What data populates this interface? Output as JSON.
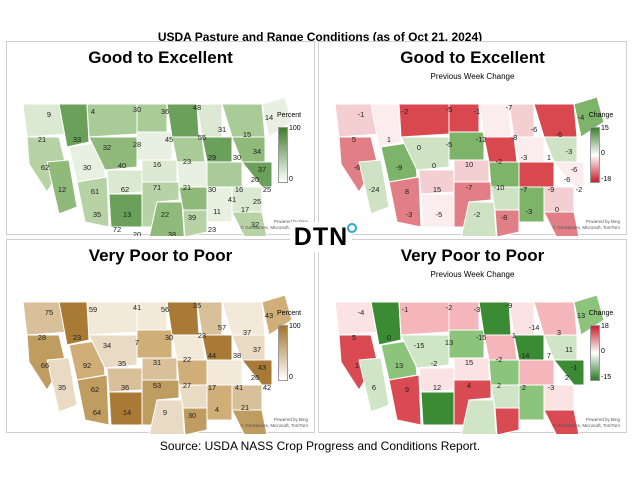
{
  "title": "USDA Pasture and Range Conditions (as of Oct 21, 2024)",
  "source": "Source:  USDA NASS Crop Progress and Conditions Report.",
  "logo_text": "DTN",
  "credit": {
    "line1": "Powered by Bing",
    "line2": "© GeoNames, Microsoft, TomTom"
  },
  "panels": [
    {
      "title": "Good to Excellent",
      "subtitle": "",
      "legend": {
        "title": "Percent",
        "max": "100",
        "min": "0",
        "colors": [
          "#3f7d2c",
          "#ffffff"
        ]
      },
      "labels": [
        "9",
        "4",
        "30",
        "36",
        "48",
        "21",
        "33",
        "32",
        "28",
        "45",
        "55",
        "31",
        "15",
        "14",
        "62",
        "30",
        "40",
        "16",
        "23",
        "29",
        "30",
        "34",
        "37",
        "12",
        "61",
        "62",
        "71",
        "21",
        "30",
        "16",
        "20",
        "25",
        "35",
        "13",
        "22",
        "39",
        "11",
        "17",
        "25",
        "20",
        "38",
        "23",
        "32",
        "72",
        "41"
      ]
    },
    {
      "title": "Good to Excellent",
      "subtitle": "Previous Week Change",
      "legend": {
        "title": "Change",
        "max": "15",
        "zero": "0",
        "min": "-18",
        "colors": [
          "#3f7d2c",
          "#ffffff",
          "#c81e2c"
        ]
      },
      "labels": [
        "-1",
        "-2",
        "-5",
        "-1",
        "-7",
        "5",
        "1",
        "0",
        "-5",
        "-12",
        "-8",
        "-6",
        "-6",
        "-4",
        "-6",
        "-9",
        "0",
        "10",
        "-2",
        "-3",
        "1",
        "-3",
        "-6",
        "-24",
        "8",
        "15",
        "-7",
        "-10",
        "-7",
        "-9",
        "-6",
        "-2",
        "-3",
        "-5",
        "-2",
        "-8",
        "-3",
        "0"
      ]
    },
    {
      "title": "Very Poor to Poor",
      "subtitle": "",
      "legend": {
        "title": "Percent",
        "max": "100",
        "min": "0",
        "colors": [
          "#a3752b",
          "#ffffff"
        ]
      },
      "labels": [
        "75",
        "59",
        "41",
        "56",
        "35",
        "28",
        "23",
        "34",
        "7",
        "30",
        "23",
        "57",
        "37",
        "43",
        "66",
        "92",
        "35",
        "31",
        "22",
        "44",
        "38",
        "37",
        "43",
        "35",
        "62",
        "36",
        "53",
        "27",
        "17",
        "41",
        "26",
        "42",
        "64",
        "14",
        "9",
        "30",
        "4",
        "21"
      ]
    },
    {
      "title": "Very Poor to Poor",
      "subtitle": "Previous Week Change",
      "legend": {
        "title": "Change",
        "max": "18",
        "zero": "0",
        "min": "-15",
        "colors": [
          "#c81e2c",
          "#ffffff",
          "#2f7a2a"
        ]
      },
      "labels": [
        "-4",
        "-1",
        "-2",
        "-3",
        "-9",
        "5",
        "0",
        "-15",
        "13",
        "-15",
        "1",
        "-14",
        "3",
        "13",
        "1",
        "13",
        "-2",
        "15",
        "-2",
        "-14",
        "7",
        "11",
        "-1",
        "6",
        "9",
        "12",
        "4",
        "2",
        "2",
        "-3",
        "2"
      ]
    }
  ]
}
